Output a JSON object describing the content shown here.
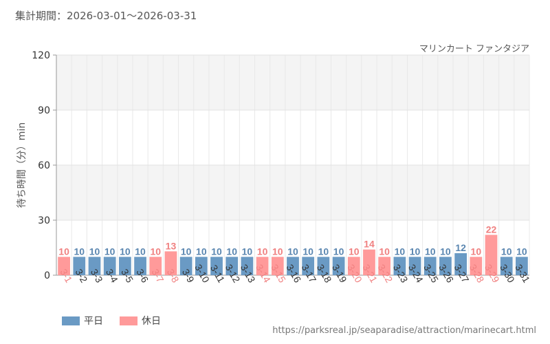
{
  "header": {
    "period": "集計期間：2026-03-01～2026-03-31",
    "chart_title": "マリンカート ファンタジア"
  },
  "footer": {
    "url": "https://parksreal.jp/seaparadise/attraction/marinecart.html"
  },
  "legend": [
    {
      "label": "平日",
      "color": "#6a9ac4"
    },
    {
      "label": "休日",
      "color": "#ff9a9a"
    }
  ],
  "colors": {
    "weekday": "#6a9ac4",
    "holiday": "#ff9a9a",
    "weekday_text": "#5a86b0",
    "holiday_text": "#f08080"
  },
  "chart_data": {
    "type": "bar",
    "title": "マリンカート ファンタジア",
    "ylabel": "待ち時間（分）min",
    "xlabel": "",
    "ylim": [
      0,
      120
    ],
    "yticks": [
      0,
      30,
      60,
      90,
      120
    ],
    "grid": true,
    "legend_position": "bottom-left",
    "categories": [
      "3-1",
      "3-2",
      "3-3",
      "3-4",
      "3-5",
      "3-6",
      "3-7",
      "3-8",
      "3-9",
      "3-10",
      "3-11",
      "3-12",
      "3-13",
      "3-14",
      "3-15",
      "3-16",
      "3-17",
      "3-18",
      "3-19",
      "3-20",
      "3-21",
      "3-22",
      "3-23",
      "3-24",
      "3-25",
      "3-26",
      "3-27",
      "3-28",
      "3-29",
      "3-30",
      "3-31"
    ],
    "values": [
      10,
      10,
      10,
      10,
      10,
      10,
      10,
      13,
      10,
      10,
      10,
      10,
      10,
      10,
      10,
      10,
      10,
      10,
      10,
      10,
      14,
      10,
      10,
      10,
      10,
      10,
      12,
      10,
      22,
      10,
      10
    ],
    "day_type": [
      "休日",
      "平日",
      "平日",
      "平日",
      "平日",
      "平日",
      "休日",
      "休日",
      "平日",
      "平日",
      "平日",
      "平日",
      "平日",
      "休日",
      "休日",
      "平日",
      "平日",
      "平日",
      "平日",
      "休日",
      "休日",
      "休日",
      "平日",
      "平日",
      "平日",
      "平日",
      "平日",
      "休日",
      "休日",
      "平日",
      "平日"
    ]
  }
}
